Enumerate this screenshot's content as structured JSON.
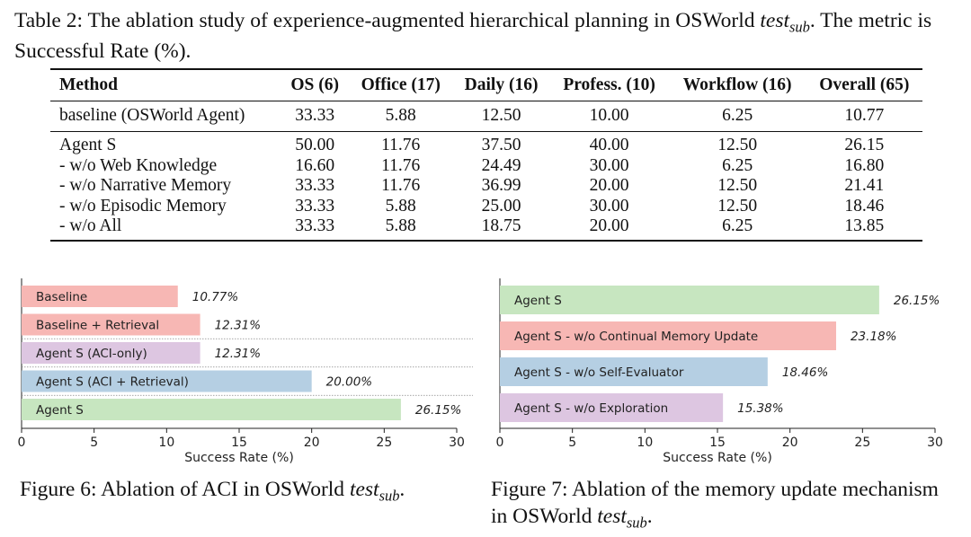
{
  "table_caption": {
    "prefix": "Table 2: The ablation study of experience-augmented hierarchical planning in OSWorld ",
    "sub_base": "test",
    "sub_index": "sub",
    "suffix": ". The metric is Successful Rate (%)."
  },
  "table": {
    "headers": [
      "Method",
      "OS (6)",
      "Office (17)",
      "Daily (16)",
      "Profess. (10)",
      "Workflow (16)",
      "Overall (65)"
    ],
    "rows": [
      [
        "baseline (OSWorld Agent)",
        "33.33",
        "5.88",
        "12.50",
        "10.00",
        "6.25",
        "10.77"
      ],
      [
        "Agent S",
        "50.00",
        "11.76",
        "37.50",
        "40.00",
        "12.50",
        "26.15"
      ],
      [
        "- w/o Web Knowledge",
        "16.60",
        "11.76",
        "24.49",
        "30.00",
        "6.25",
        "16.80"
      ],
      [
        "- w/o Narrative Memory",
        "33.33",
        "11.76",
        "36.99",
        "20.00",
        "12.50",
        "21.41"
      ],
      [
        "- w/o Episodic Memory",
        "33.33",
        "5.88",
        "25.00",
        "30.00",
        "12.50",
        "18.46"
      ],
      [
        "- w/o All",
        "33.33",
        "5.88",
        "18.75",
        "20.00",
        "6.25",
        "13.85"
      ]
    ]
  },
  "chart_data": [
    {
      "type": "bar",
      "orientation": "horizontal",
      "categories": [
        "Baseline",
        "Baseline + Retrieval",
        "Agent S (ACI-only)",
        "Agent S (ACI + Retrieval)",
        "Agent S"
      ],
      "values": [
        10.77,
        12.31,
        12.31,
        20.0,
        26.15
      ],
      "value_labels": [
        "10.77%",
        "12.31%",
        "12.31%",
        "20.00%",
        "26.15%"
      ],
      "colors": [
        "#f7b7b4",
        "#f7b7b4",
        "#ddc6e1",
        "#b5cfe3",
        "#c7e6c0"
      ],
      "xlabel": "Success Rate (%)",
      "xlim": [
        0,
        30
      ],
      "xticks": [
        0,
        5,
        10,
        15,
        20,
        25,
        30
      ],
      "separators_after": [
        1,
        2,
        3
      ],
      "grid": false
    },
    {
      "type": "bar",
      "orientation": "horizontal",
      "categories": [
        "Agent S",
        "Agent S - w/o Continual Memory Update",
        "Agent S - w/o Self-Evaluator",
        "Agent S - w/o Exploration"
      ],
      "values": [
        26.15,
        23.18,
        18.46,
        15.38
      ],
      "value_labels": [
        "26.15%",
        "23.18%",
        "18.46%",
        "15.38%"
      ],
      "colors": [
        "#c7e6c0",
        "#f7b7b4",
        "#b5cfe3",
        "#ddc6e1"
      ],
      "xlabel": "Success Rate (%)",
      "xlim": [
        0,
        30
      ],
      "xticks": [
        0,
        5,
        10,
        15,
        20,
        25,
        30
      ],
      "grid": false
    }
  ],
  "figure6_caption": {
    "prefix": "Figure 6: Ablation of ACI in OSWorld ",
    "sub_base": "test",
    "sub_index": "sub",
    "suffix": "."
  },
  "figure7_caption": {
    "prefix": "Figure 7: Ablation of the memory update mechanism in OSWorld ",
    "sub_base": "test",
    "sub_index": "sub",
    "suffix": "."
  }
}
